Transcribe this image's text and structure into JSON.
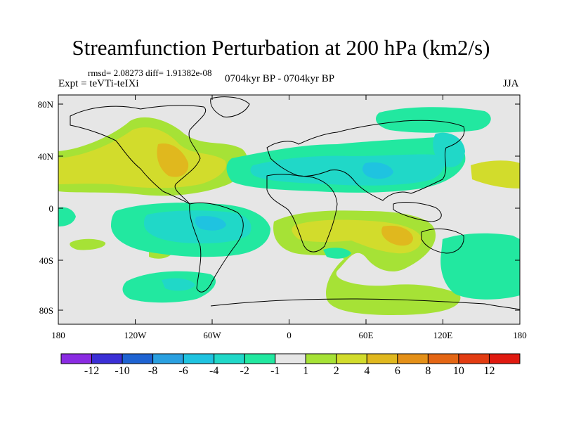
{
  "title": "Streamfunction Perturbation at 200 hPa (km2/s)",
  "stats": "rmsd= 2.08273  diff= 1.91382e-08",
  "expt": "Expt = teVTi-teIXi",
  "period": "0704kyr BP - 0704kyr BP",
  "season": "JJA",
  "lat_labels": [
    "80N",
    "40N",
    "0",
    "40S",
    "80S"
  ],
  "lon_labels": [
    "180",
    "120W",
    "60W",
    "0",
    "60E",
    "120E",
    "180"
  ],
  "colorbar": {
    "colors": [
      "#8a2be2",
      "#3b2fd6",
      "#1e63d2",
      "#2aa0e0",
      "#1fc3e0",
      "#20d8c8",
      "#22e8a0",
      "#e6e6e6",
      "#a6e236",
      "#d2dc2c",
      "#e0b81e",
      "#e49018",
      "#e46614",
      "#e23c12",
      "#e01a10"
    ],
    "labels": [
      "-12",
      "-10",
      "-8",
      "-6",
      "-4",
      "-2",
      "-1",
      "1",
      "2",
      "4",
      "6",
      "8",
      "10",
      "12"
    ]
  }
}
